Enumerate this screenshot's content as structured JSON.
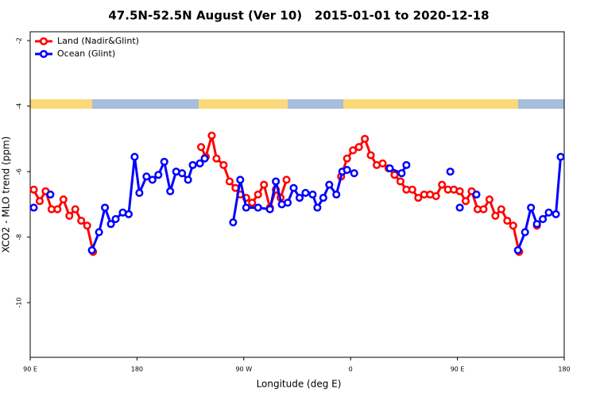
{
  "chart_data": {
    "type": "line",
    "title": "47.5N-52.5N August (Ver 10)   2015-01-01 to 2020-12-18",
    "xlabel": "Longitude (deg E)",
    "ylabel": "XCO2 - MLO trend (ppm)",
    "xlim": [
      90,
      540
    ],
    "xticks": [
      {
        "value": 90,
        "label": "90 E"
      },
      {
        "value": 180,
        "label": "180"
      },
      {
        "value": 270,
        "label": "90 W"
      },
      {
        "value": 360,
        "label": "0"
      },
      {
        "value": 450,
        "label": "90 E"
      },
      {
        "value": 540,
        "label": "180"
      }
    ],
    "ylim": [
      -11.67,
      -1.73
    ],
    "yticks": [
      -2,
      -4,
      -6,
      -8,
      -10
    ],
    "legend": "top-left",
    "series": [
      {
        "name": "Land (Nadir&Glint)",
        "color": "#ff0000",
        "x": [
          93,
          98,
          103,
          108,
          113,
          118,
          123,
          128,
          133,
          138,
          143,
          190,
          234,
          238,
          243,
          247,
          253,
          258,
          263,
          267,
          272,
          277,
          282,
          287,
          292,
          297,
          301,
          306,
          330,
          352,
          357,
          362,
          367,
          372,
          377,
          382,
          387,
          392,
          397,
          402,
          407,
          412,
          417,
          422,
          427,
          432,
          437,
          442,
          447,
          452,
          457,
          462,
          467,
          472,
          477,
          482,
          487,
          492,
          497,
          502,
          510,
          517
        ],
        "values": [
          -6.55,
          -6.9,
          -6.6,
          -7.15,
          -7.15,
          -6.85,
          -7.35,
          -7.15,
          -7.5,
          -7.65,
          -8.45,
          null,
          -5.25,
          -5.55,
          -4.9,
          -5.6,
          -5.8,
          -6.3,
          -6.5,
          -6.7,
          -6.8,
          -6.95,
          -6.7,
          -6.4,
          -7.1,
          -6.55,
          -6.8,
          -6.25,
          null,
          -6.15,
          -5.6,
          -5.35,
          -5.25,
          -5.0,
          -5.5,
          -5.8,
          -5.75,
          -5.9,
          -6.1,
          -6.3,
          -6.55,
          -6.55,
          -6.8,
          -6.7,
          -6.7,
          -6.75,
          -6.4,
          -6.55,
          -6.55,
          -6.6,
          -6.9,
          -6.6,
          -7.15,
          -7.15,
          -6.85,
          -7.35,
          -7.15,
          -7.5,
          -7.65,
          -8.45,
          null,
          -7.65
        ]
      },
      {
        "name": "Ocean (Glint)",
        "color": "#0000ff",
        "x": [
          93,
          100,
          107,
          125,
          142,
          148,
          153,
          158,
          162,
          168,
          173,
          178,
          182,
          188,
          193,
          198,
          203,
          208,
          213,
          218,
          223,
          227,
          233,
          237,
          250,
          261,
          267,
          272,
          282,
          292,
          297,
          302,
          307,
          312,
          317,
          322,
          328,
          332,
          337,
          342,
          348,
          353,
          357,
          363,
          380,
          393,
          403,
          407,
          425,
          444,
          448,
          452,
          460,
          466,
          490,
          501,
          507,
          512,
          517,
          522,
          527,
          533,
          537
        ],
        "values": [
          -7.1,
          null,
          -6.7,
          null,
          -8.4,
          -7.85,
          -7.1,
          -7.6,
          -7.45,
          -7.25,
          -7.3,
          -5.55,
          -6.65,
          -6.15,
          -6.25,
          -6.1,
          -5.7,
          -6.6,
          -6.0,
          -6.05,
          -6.25,
          -5.8,
          -5.75,
          -5.6,
          null,
          -7.55,
          -6.25,
          -7.1,
          -7.1,
          -7.15,
          -6.3,
          -7.0,
          -6.95,
          -6.5,
          -6.8,
          -6.65,
          -6.7,
          -7.1,
          -6.8,
          -6.4,
          -6.7,
          -6.0,
          -5.95,
          -6.05,
          null,
          -5.9,
          -6.05,
          -5.8,
          null,
          -6.0,
          null,
          -7.1,
          null,
          -6.7,
          null,
          -8.4,
          -7.85,
          -7.1,
          -7.6,
          -7.45,
          -7.25,
          -7.3,
          -5.55
        ]
      }
    ]
  }
}
